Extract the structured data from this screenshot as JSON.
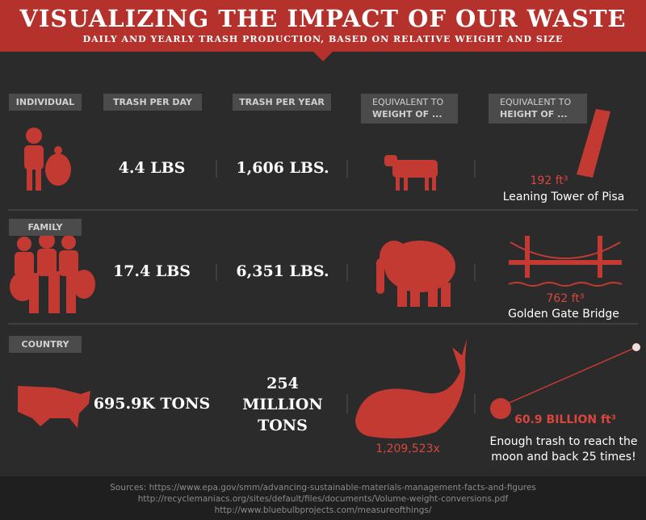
{
  "header": {
    "title": "VISUALIZING THE IMPACT OF OUR WASTE",
    "subtitle": "DAILY AND YEARLY TRASH PRODUCTION, BASED ON RELATIVE WEIGHT AND SIZE"
  },
  "columns": {
    "per_day": "TRASH PER DAY",
    "per_year": "TRASH PER YEAR",
    "weight": {
      "line1": "EQUIVALENT TO",
      "line2": "WEIGHT OF ..."
    },
    "height": {
      "line1": "EQUIVALENT TO",
      "line2": "HEIGHT OF ..."
    }
  },
  "rows": [
    {
      "label": "INDIVIDUAL",
      "per_day": "4.4 LBS",
      "per_year": "1,606 LBS.",
      "height_value": "192 ft³",
      "height_name": "Leaning Tower of Pisa"
    },
    {
      "label": "FAMILY",
      "per_day": "17.4 LBS",
      "per_year": "6,351 LBS.",
      "height_value": "762 ft³",
      "height_name": "Golden Gate Bridge"
    },
    {
      "label": "COUNTRY",
      "per_day": "695.9K TONS",
      "per_year": "254 MILLION TONS",
      "weight_note": "1,209,523x",
      "height_value": "60.9 BILLION ft³",
      "height_name": "Enough trash to reach the moon and back 25 times!"
    }
  ],
  "sources": [
    "Sources: https://www.epa.gov/smm/advancing-sustainable-materials-management-facts-and-figures",
    "http://recyclemaniacs.org/sites/default/files/documents/Volume-weight-conversions.pdf",
    "http://www.bluebulbprojects.com/measureofthings/"
  ]
}
